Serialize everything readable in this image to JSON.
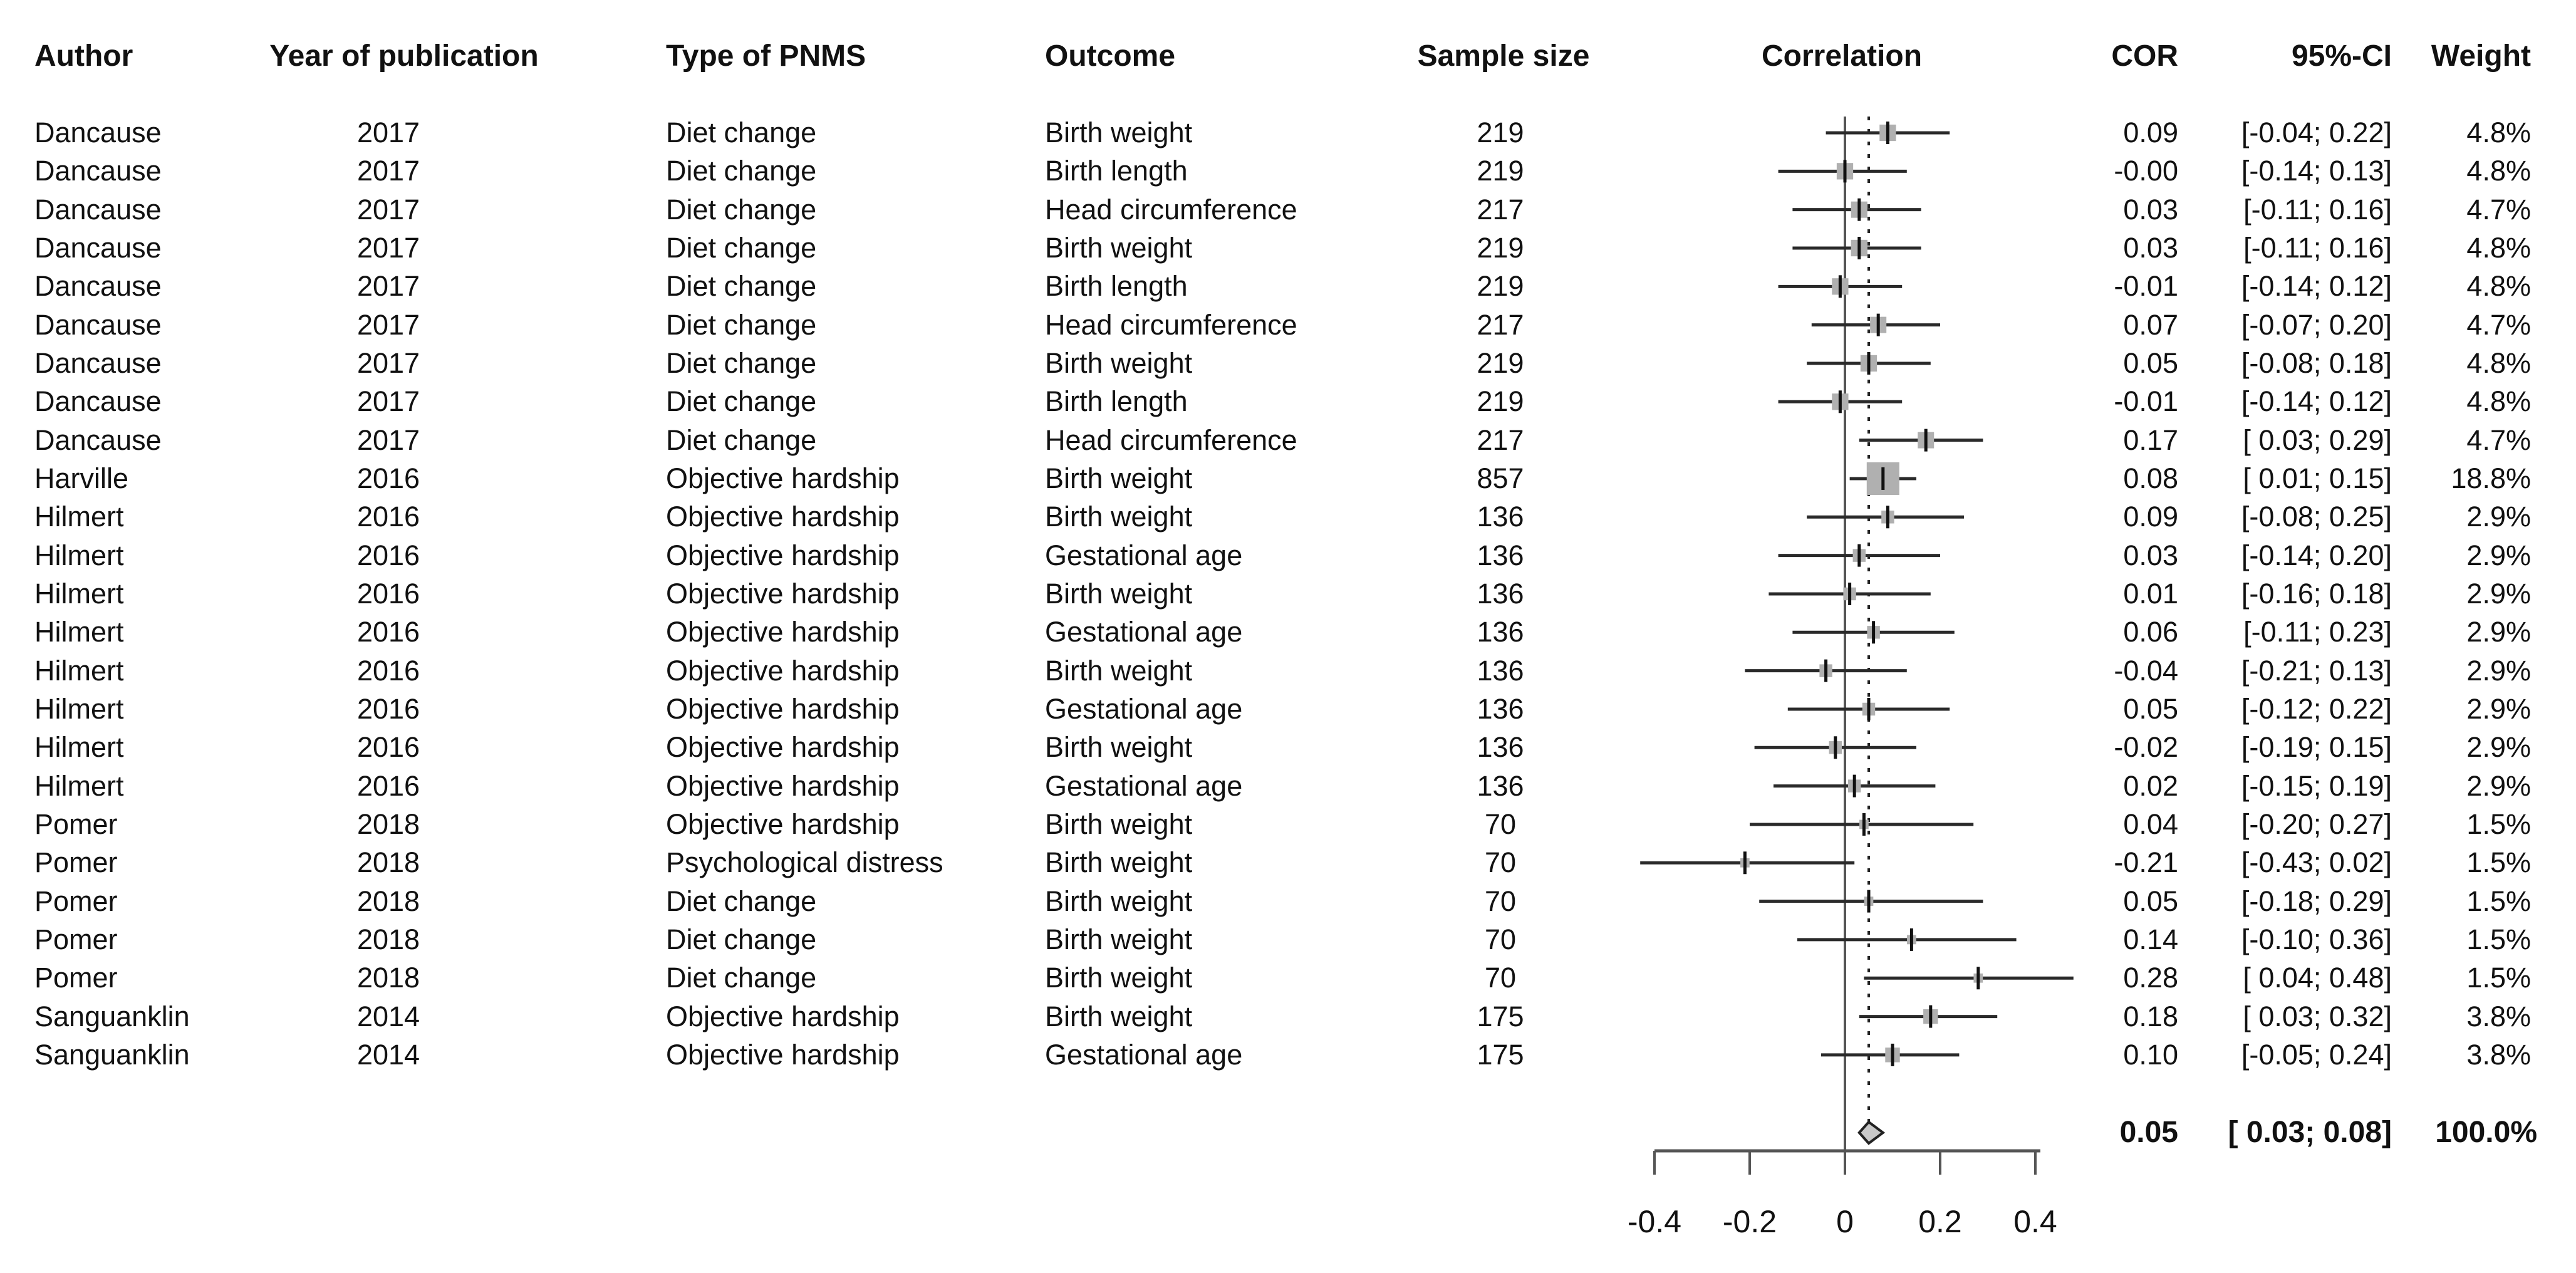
{
  "header": {
    "author": "Author",
    "year": "Year of publication",
    "type_of_pnms": "Type of PNMS",
    "outcome": "Outcome",
    "sample_size": "Sample size",
    "correlation": "Correlation",
    "cor": "COR",
    "ci": "95%-CI",
    "weight": "Weight"
  },
  "summary": {
    "cor": "0.05",
    "ci": "[ 0.03; 0.08]",
    "weight": "100.0%",
    "est": 0.05,
    "lo": 0.03,
    "hi": 0.08
  },
  "chart_data": {
    "type": "scatter",
    "variant": "forest-plot",
    "title": "",
    "xlabel": "Correlation",
    "xlim": [
      -0.5,
      0.5
    ],
    "x_ticks": [
      {
        "label": "-0.4",
        "value": -0.4
      },
      {
        "label": "-0.2",
        "value": -0.2
      },
      {
        "label": "0",
        "value": 0.0
      },
      {
        "label": "0.2",
        "value": 0.2
      },
      {
        "label": "0.4",
        "value": 0.4
      }
    ],
    "reference_line": 0.0,
    "dashed_line_at": 0.05,
    "legend_position": "none",
    "grid": false,
    "marker_color": "#b0b0b0",
    "line_color": "#2a2a2a",
    "axis_color": "#555555",
    "diamond_fill": "#c9c9c9",
    "diamond_stroke": "#222222",
    "rows": [
      {
        "author": "Dancause",
        "year": "2017",
        "type_of_pnms": "Diet change",
        "outcome": "Birth weight",
        "sample_size": "219",
        "cor": "0.09",
        "ci": "[-0.04; 0.22]",
        "weight": "4.8%",
        "est": 0.09,
        "lo": -0.04,
        "hi": 0.22,
        "weight_pct": 4.8
      },
      {
        "author": "Dancause",
        "year": "2017",
        "type_of_pnms": "Diet change",
        "outcome": "Birth length",
        "sample_size": "219",
        "cor": "-0.00",
        "ci": "[-0.14; 0.13]",
        "weight": "4.8%",
        "est": 0.0,
        "lo": -0.14,
        "hi": 0.13,
        "weight_pct": 4.8
      },
      {
        "author": "Dancause",
        "year": "2017",
        "type_of_pnms": "Diet change",
        "outcome": "Head circumference",
        "sample_size": "217",
        "cor": "0.03",
        "ci": "[-0.11; 0.16]",
        "weight": "4.7%",
        "est": 0.03,
        "lo": -0.11,
        "hi": 0.16,
        "weight_pct": 4.7
      },
      {
        "author": "Dancause",
        "year": "2017",
        "type_of_pnms": "Diet change",
        "outcome": "Birth weight",
        "sample_size": "219",
        "cor": "0.03",
        "ci": "[-0.11; 0.16]",
        "weight": "4.8%",
        "est": 0.03,
        "lo": -0.11,
        "hi": 0.16,
        "weight_pct": 4.8
      },
      {
        "author": "Dancause",
        "year": "2017",
        "type_of_pnms": "Diet change",
        "outcome": "Birth length",
        "sample_size": "219",
        "cor": "-0.01",
        "ci": "[-0.14; 0.12]",
        "weight": "4.8%",
        "est": -0.01,
        "lo": -0.14,
        "hi": 0.12,
        "weight_pct": 4.8
      },
      {
        "author": "Dancause",
        "year": "2017",
        "type_of_pnms": "Diet change",
        "outcome": "Head circumference",
        "sample_size": "217",
        "cor": "0.07",
        "ci": "[-0.07; 0.20]",
        "weight": "4.7%",
        "est": 0.07,
        "lo": -0.07,
        "hi": 0.2,
        "weight_pct": 4.7
      },
      {
        "author": "Dancause",
        "year": "2017",
        "type_of_pnms": "Diet change",
        "outcome": "Birth weight",
        "sample_size": "219",
        "cor": "0.05",
        "ci": "[-0.08; 0.18]",
        "weight": "4.8%",
        "est": 0.05,
        "lo": -0.08,
        "hi": 0.18,
        "weight_pct": 4.8
      },
      {
        "author": "Dancause",
        "year": "2017",
        "type_of_pnms": "Diet change",
        "outcome": "Birth length",
        "sample_size": "219",
        "cor": "-0.01",
        "ci": "[-0.14; 0.12]",
        "weight": "4.8%",
        "est": -0.01,
        "lo": -0.14,
        "hi": 0.12,
        "weight_pct": 4.8
      },
      {
        "author": "Dancause",
        "year": "2017",
        "type_of_pnms": "Diet change",
        "outcome": "Head circumference",
        "sample_size": "217",
        "cor": "0.17",
        "ci": "[ 0.03; 0.29]",
        "weight": "4.7%",
        "est": 0.17,
        "lo": 0.03,
        "hi": 0.29,
        "weight_pct": 4.7
      },
      {
        "author": "Harville",
        "year": "2016",
        "type_of_pnms": "Objective hardship",
        "outcome": "Birth weight",
        "sample_size": "857",
        "cor": "0.08",
        "ci": "[ 0.01; 0.15]",
        "weight": "18.8%",
        "est": 0.08,
        "lo": 0.01,
        "hi": 0.15,
        "weight_pct": 18.8
      },
      {
        "author": "Hilmert",
        "year": "2016",
        "type_of_pnms": "Objective hardship",
        "outcome": "Birth weight",
        "sample_size": "136",
        "cor": "0.09",
        "ci": "[-0.08; 0.25]",
        "weight": "2.9%",
        "est": 0.09,
        "lo": -0.08,
        "hi": 0.25,
        "weight_pct": 2.9
      },
      {
        "author": "Hilmert",
        "year": "2016",
        "type_of_pnms": "Objective hardship",
        "outcome": "Gestational age",
        "sample_size": "136",
        "cor": "0.03",
        "ci": "[-0.14; 0.20]",
        "weight": "2.9%",
        "est": 0.03,
        "lo": -0.14,
        "hi": 0.2,
        "weight_pct": 2.9
      },
      {
        "author": "Hilmert",
        "year": "2016",
        "type_of_pnms": "Objective hardship",
        "outcome": "Birth weight",
        "sample_size": "136",
        "cor": "0.01",
        "ci": "[-0.16; 0.18]",
        "weight": "2.9%",
        "est": 0.01,
        "lo": -0.16,
        "hi": 0.18,
        "weight_pct": 2.9
      },
      {
        "author": "Hilmert",
        "year": "2016",
        "type_of_pnms": "Objective hardship",
        "outcome": "Gestational age",
        "sample_size": "136",
        "cor": "0.06",
        "ci": "[-0.11; 0.23]",
        "weight": "2.9%",
        "est": 0.06,
        "lo": -0.11,
        "hi": 0.23,
        "weight_pct": 2.9
      },
      {
        "author": "Hilmert",
        "year": "2016",
        "type_of_pnms": "Objective hardship",
        "outcome": "Birth weight",
        "sample_size": "136",
        "cor": "-0.04",
        "ci": "[-0.21; 0.13]",
        "weight": "2.9%",
        "est": -0.04,
        "lo": -0.21,
        "hi": 0.13,
        "weight_pct": 2.9
      },
      {
        "author": "Hilmert",
        "year": "2016",
        "type_of_pnms": "Objective hardship",
        "outcome": "Gestational age",
        "sample_size": "136",
        "cor": "0.05",
        "ci": "[-0.12; 0.22]",
        "weight": "2.9%",
        "est": 0.05,
        "lo": -0.12,
        "hi": 0.22,
        "weight_pct": 2.9
      },
      {
        "author": "Hilmert",
        "year": "2016",
        "type_of_pnms": "Objective hardship",
        "outcome": "Birth weight",
        "sample_size": "136",
        "cor": "-0.02",
        "ci": "[-0.19; 0.15]",
        "weight": "2.9%",
        "est": -0.02,
        "lo": -0.19,
        "hi": 0.15,
        "weight_pct": 2.9
      },
      {
        "author": "Hilmert",
        "year": "2016",
        "type_of_pnms": "Objective hardship",
        "outcome": "Gestational age",
        "sample_size": "136",
        "cor": "0.02",
        "ci": "[-0.15; 0.19]",
        "weight": "2.9%",
        "est": 0.02,
        "lo": -0.15,
        "hi": 0.19,
        "weight_pct": 2.9
      },
      {
        "author": "Pomer",
        "year": "2018",
        "type_of_pnms": "Objective hardship",
        "outcome": "Birth weight",
        "sample_size": "70",
        "cor": "0.04",
        "ci": "[-0.20; 0.27]",
        "weight": "1.5%",
        "est": 0.04,
        "lo": -0.2,
        "hi": 0.27,
        "weight_pct": 1.5
      },
      {
        "author": "Pomer",
        "year": "2018",
        "type_of_pnms": "Psychological distress",
        "outcome": "Birth weight",
        "sample_size": "70",
        "cor": "-0.21",
        "ci": "[-0.43; 0.02]",
        "weight": "1.5%",
        "est": -0.21,
        "lo": -0.43,
        "hi": 0.02,
        "weight_pct": 1.5
      },
      {
        "author": "Pomer",
        "year": "2018",
        "type_of_pnms": "Diet change",
        "outcome": "Birth weight",
        "sample_size": "70",
        "cor": "0.05",
        "ci": "[-0.18; 0.29]",
        "weight": "1.5%",
        "est": 0.05,
        "lo": -0.18,
        "hi": 0.29,
        "weight_pct": 1.5
      },
      {
        "author": "Pomer",
        "year": "2018",
        "type_of_pnms": "Diet change",
        "outcome": "Birth weight",
        "sample_size": "70",
        "cor": "0.14",
        "ci": "[-0.10; 0.36]",
        "weight": "1.5%",
        "est": 0.14,
        "lo": -0.1,
        "hi": 0.36,
        "weight_pct": 1.5
      },
      {
        "author": "Pomer",
        "year": "2018",
        "type_of_pnms": "Diet change",
        "outcome": "Birth weight",
        "sample_size": "70",
        "cor": "0.28",
        "ci": "[ 0.04; 0.48]",
        "weight": "1.5%",
        "est": 0.28,
        "lo": 0.04,
        "hi": 0.48,
        "weight_pct": 1.5
      },
      {
        "author": "Sanguanklin",
        "year": "2014",
        "type_of_pnms": "Objective hardship",
        "outcome": "Birth weight",
        "sample_size": "175",
        "cor": "0.18",
        "ci": "[ 0.03; 0.32]",
        "weight": "3.8%",
        "est": 0.18,
        "lo": 0.03,
        "hi": 0.32,
        "weight_pct": 3.8
      },
      {
        "author": "Sanguanklin",
        "year": "2014",
        "type_of_pnms": "Objective hardship",
        "outcome": "Gestational age",
        "sample_size": "175",
        "cor": "0.10",
        "ci": "[-0.05; 0.24]",
        "weight": "3.8%",
        "est": 0.1,
        "lo": -0.05,
        "hi": 0.24,
        "weight_pct": 3.8
      }
    ],
    "summary": {
      "label_cor": "0.05",
      "label_ci": "[ 0.03; 0.08]",
      "label_weight": "100.0%",
      "est": 0.05,
      "lo": 0.03,
      "hi": 0.08
    }
  }
}
